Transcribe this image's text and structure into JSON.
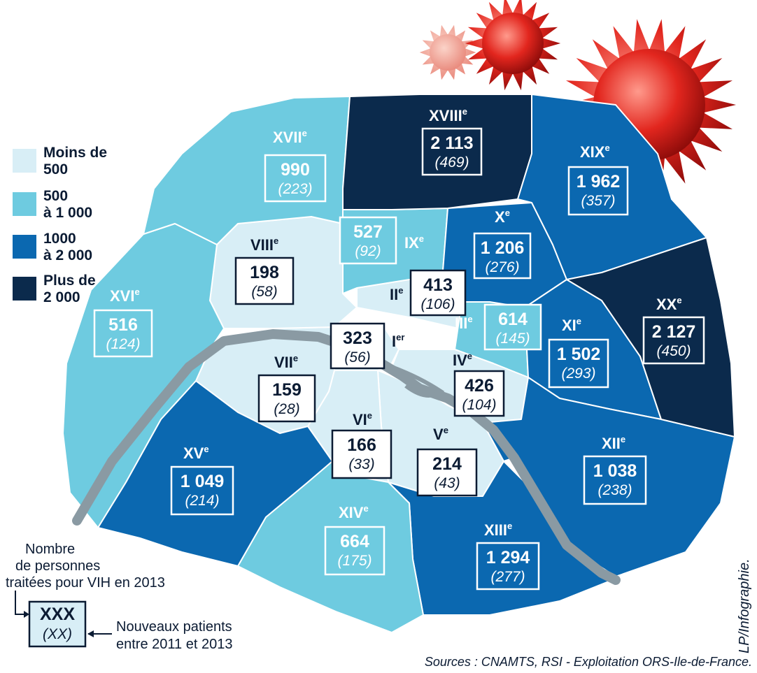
{
  "colors": {
    "moins_500": "#d8eef6",
    "r500_1000": "#6ecbe0",
    "r1000_2000": "#0b68b0",
    "plus_2000": "#0b2a4c",
    "river": "#8a9aa3",
    "text_dark": "#0b1b33"
  },
  "legend": [
    {
      "line1": "Moins de",
      "line2": "500",
      "color": "#d8eef6"
    },
    {
      "line1": "500",
      "line2": "à 1 000",
      "color": "#6ecbe0"
    },
    {
      "line1": "1000",
      "line2": "à 2 000",
      "color": "#0b68b0"
    },
    {
      "line1": "Plus de",
      "line2": "2 000",
      "color": "#0b2a4c"
    }
  ],
  "arrondissements": [
    {
      "num": "I",
      "sup": "er",
      "count": "323",
      "new": "(56)",
      "category": "moins_500"
    },
    {
      "num": "II",
      "sup": "e",
      "count": "413",
      "new": "(106)",
      "category": "moins_500"
    },
    {
      "num": "III",
      "sup": "e",
      "count": "614",
      "new": "(145)",
      "category": "r500_1000"
    },
    {
      "num": "IV",
      "sup": "e",
      "count": "426",
      "new": "(104)",
      "category": "moins_500"
    },
    {
      "num": "V",
      "sup": "e",
      "count": "214",
      "new": "(43)",
      "category": "moins_500"
    },
    {
      "num": "VI",
      "sup": "e",
      "count": "166",
      "new": "(33)",
      "category": "moins_500"
    },
    {
      "num": "VII",
      "sup": "e",
      "count": "159",
      "new": "(28)",
      "category": "moins_500"
    },
    {
      "num": "VIII",
      "sup": "e",
      "count": "198",
      "new": "(58)",
      "category": "moins_500"
    },
    {
      "num": "IX",
      "sup": "e",
      "count": "527",
      "new": "(92)",
      "category": "r500_1000"
    },
    {
      "num": "X",
      "sup": "e",
      "count": "1 206",
      "new": "(276)",
      "category": "r1000_2000"
    },
    {
      "num": "XI",
      "sup": "e",
      "count": "1 502",
      "new": "(293)",
      "category": "r1000_2000"
    },
    {
      "num": "XII",
      "sup": "e",
      "count": "1 038",
      "new": "(238)",
      "category": "r1000_2000"
    },
    {
      "num": "XIII",
      "sup": "e",
      "count": "1 294",
      "new": "(277)",
      "category": "r1000_2000"
    },
    {
      "num": "XIV",
      "sup": "e",
      "count": "664",
      "new": "(175)",
      "category": "r500_1000"
    },
    {
      "num": "XV",
      "sup": "e",
      "count": "1 049",
      "new": "(214)",
      "category": "r1000_2000"
    },
    {
      "num": "XVI",
      "sup": "e",
      "count": "516",
      "new": "(124)",
      "category": "r500_1000"
    },
    {
      "num": "XVII",
      "sup": "e",
      "count": "990",
      "new": "(223)",
      "category": "r500_1000"
    },
    {
      "num": "XVIII",
      "sup": "e",
      "count": "2 113",
      "new": "(469)",
      "category": "plus_2000"
    },
    {
      "num": "XIX",
      "sup": "e",
      "count": "1 962",
      "new": "(357)",
      "category": "r1000_2000"
    },
    {
      "num": "XX",
      "sup": "e",
      "count": "2 127",
      "new": "(450)",
      "category": "plus_2000"
    }
  ],
  "key": {
    "caption_lines": [
      "Nombre",
      "de personnes",
      "traitées pour VIH en 2013"
    ],
    "count": "XXX",
    "new": "(XX)",
    "new_caption_lines": [
      "Nouveaux patients",
      "entre 2011 et 2013"
    ]
  },
  "credit": "LP/Infographie.",
  "sources": "Sources : CNAMTS, RSI - Exploitation ORS-Ile-de-France."
}
